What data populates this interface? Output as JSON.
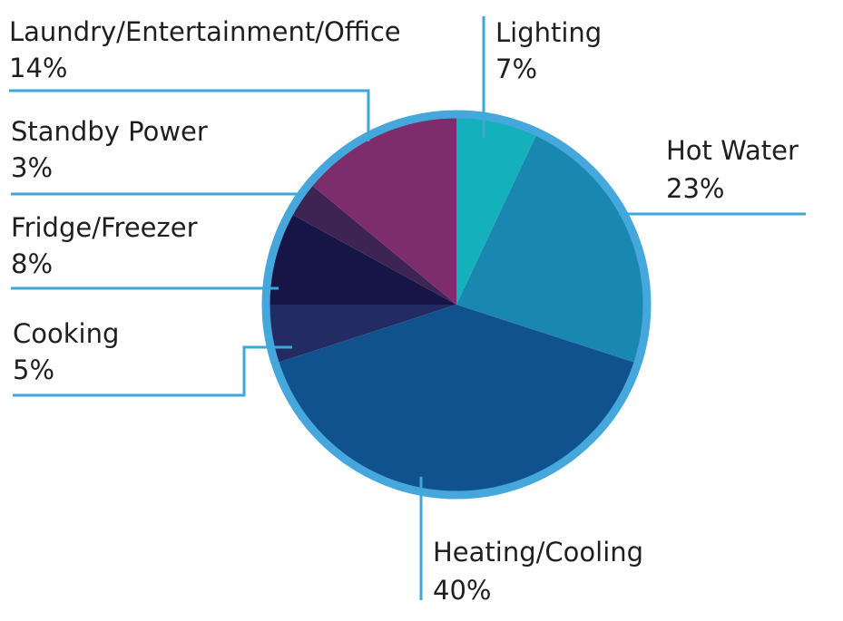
{
  "chart_data": {
    "type": "pie",
    "title": "",
    "slices": [
      {
        "label": "Lighting",
        "value": 7,
        "value_text": "7%",
        "color": "#14b0bb"
      },
      {
        "label": "Hot Water",
        "value": 23,
        "value_text": "23%",
        "color": "#1a87b0"
      },
      {
        "label": "Heating/Cooling",
        "value": 40,
        "value_text": "40%",
        "color": "#10528e"
      },
      {
        "label": "Cooking",
        "value": 5,
        "value_text": "5%",
        "color": "#222c63"
      },
      {
        "label": "Fridge/Freezer",
        "value": 8,
        "value_text": "8%",
        "color": "#171546"
      },
      {
        "label": "Standby Power",
        "value": 3,
        "value_text": "3%",
        "color": "#3e2455"
      },
      {
        "label": "Laundry/Entertainment/Office",
        "value": 14,
        "value_text": "14%",
        "color": "#7d2d6c"
      }
    ],
    "rim_color": "#45a7dc",
    "leader_color": "#3ba8d9",
    "start": "12 o'clock",
    "direction": "clockwise",
    "legend": "none (leader-line labels)"
  }
}
